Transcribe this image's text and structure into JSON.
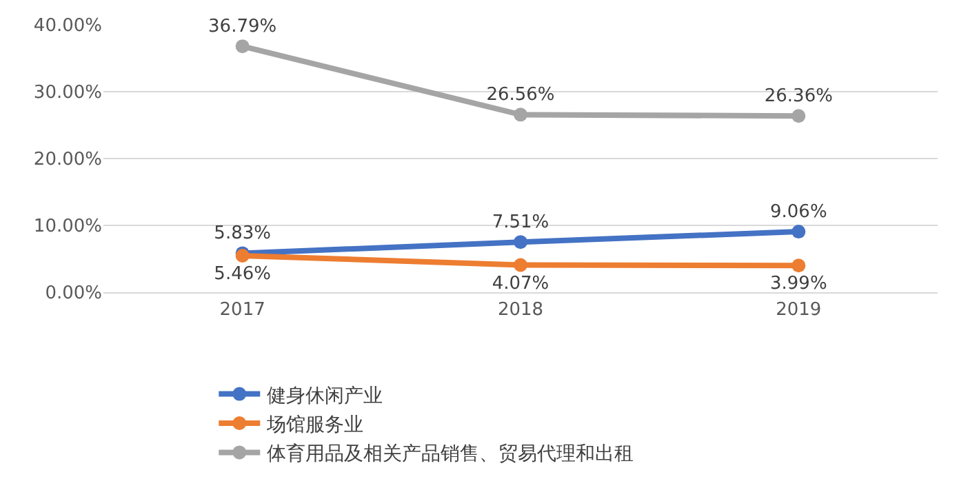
{
  "chart_data": {
    "type": "line",
    "categories": [
      "2017",
      "2018",
      "2019"
    ],
    "series": [
      {
        "name": "健身休闲产业",
        "color": "#4472c4",
        "values": [
          5.83,
          7.51,
          9.06
        ],
        "value_labels": [
          "5.83%",
          "7.51%",
          "9.06%"
        ]
      },
      {
        "name": "场馆服务业",
        "color": "#ed7d31",
        "values": [
          5.46,
          4.07,
          3.99
        ],
        "value_labels": [
          "5.46%",
          "4.07%",
          "3.99%"
        ]
      },
      {
        "name": "体育用品及相关产品销售、贸易代理和出租",
        "color": "#a5a5a5",
        "values": [
          36.79,
          26.56,
          26.36
        ],
        "value_labels": [
          "36.79%",
          "26.56%",
          "26.36%"
        ]
      }
    ],
    "ylim": [
      0,
      40
    ],
    "yticks": [
      {
        "value": 0,
        "label": "0.00%"
      },
      {
        "value": 10,
        "label": "10.00%"
      },
      {
        "value": 20,
        "label": "20.00%"
      },
      {
        "value": 30,
        "label": "30.00%"
      },
      {
        "value": 40,
        "label": "40.00%"
      }
    ],
    "grid": "y",
    "legend": "bottom",
    "marker": "circle",
    "line_style": "solid"
  }
}
